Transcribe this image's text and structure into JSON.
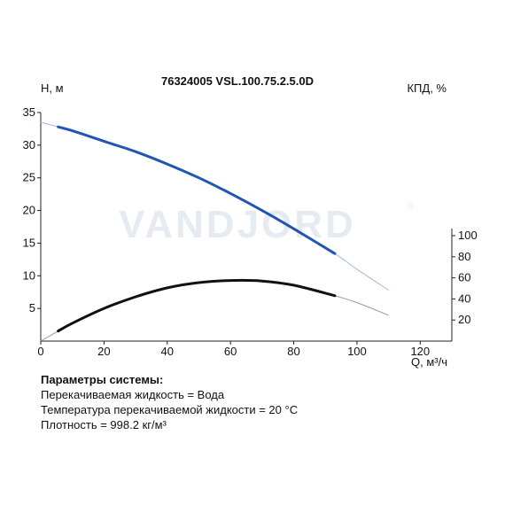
{
  "chart_data": {
    "type": "line",
    "title": "76324005 VSL.100.75.2.5.0D",
    "xlabel": "Q, м³/ч",
    "ylabel_left": "H, м",
    "ylabel_right": "КПД, %",
    "xlim": [
      0,
      130
    ],
    "ylim_left": [
      0,
      35
    ],
    "ylim_right": [
      0,
      100
    ],
    "x_ticks": [
      "0",
      "20",
      "40",
      "60",
      "80",
      "100",
      "120"
    ],
    "y_left_ticks": [
      "5",
      "10",
      "15",
      "20",
      "25",
      "30",
      "35"
    ],
    "y_right_ticks": [
      "20",
      "40",
      "60",
      "80",
      "100"
    ],
    "watermark": "VANDJORD",
    "series": [
      {
        "name": "H",
        "color": "#1f56b4",
        "axis": "left",
        "operating_range": [
          5.5,
          93
        ],
        "x": [
          0,
          5.5,
          10,
          20,
          30,
          40,
          50,
          60,
          70,
          80,
          93,
          100,
          110
        ],
        "y": [
          33.5,
          32.8,
          32.2,
          30.6,
          29.0,
          27.1,
          25.0,
          22.6,
          20.0,
          17.2,
          13.4,
          11.0,
          7.8
        ]
      },
      {
        "name": "КПД",
        "color": "#111111",
        "axis": "right",
        "operating_range": [
          5.5,
          93
        ],
        "x": [
          0,
          5.5,
          10,
          20,
          30,
          40,
          50,
          60,
          70,
          80,
          93,
          100,
          110
        ],
        "y": [
          0,
          9.5,
          17,
          31,
          42,
          50.5,
          55.5,
          57.5,
          57,
          53,
          43,
          36.5,
          24.5
        ]
      }
    ]
  },
  "params": {
    "heading": "Параметры системы:",
    "lines": [
      "Перекачиваемая жидкость = Вода",
      "Температура перекачиваемой жидкости = 20 °C",
      "Плотность = 998.2 кг/м³"
    ]
  }
}
